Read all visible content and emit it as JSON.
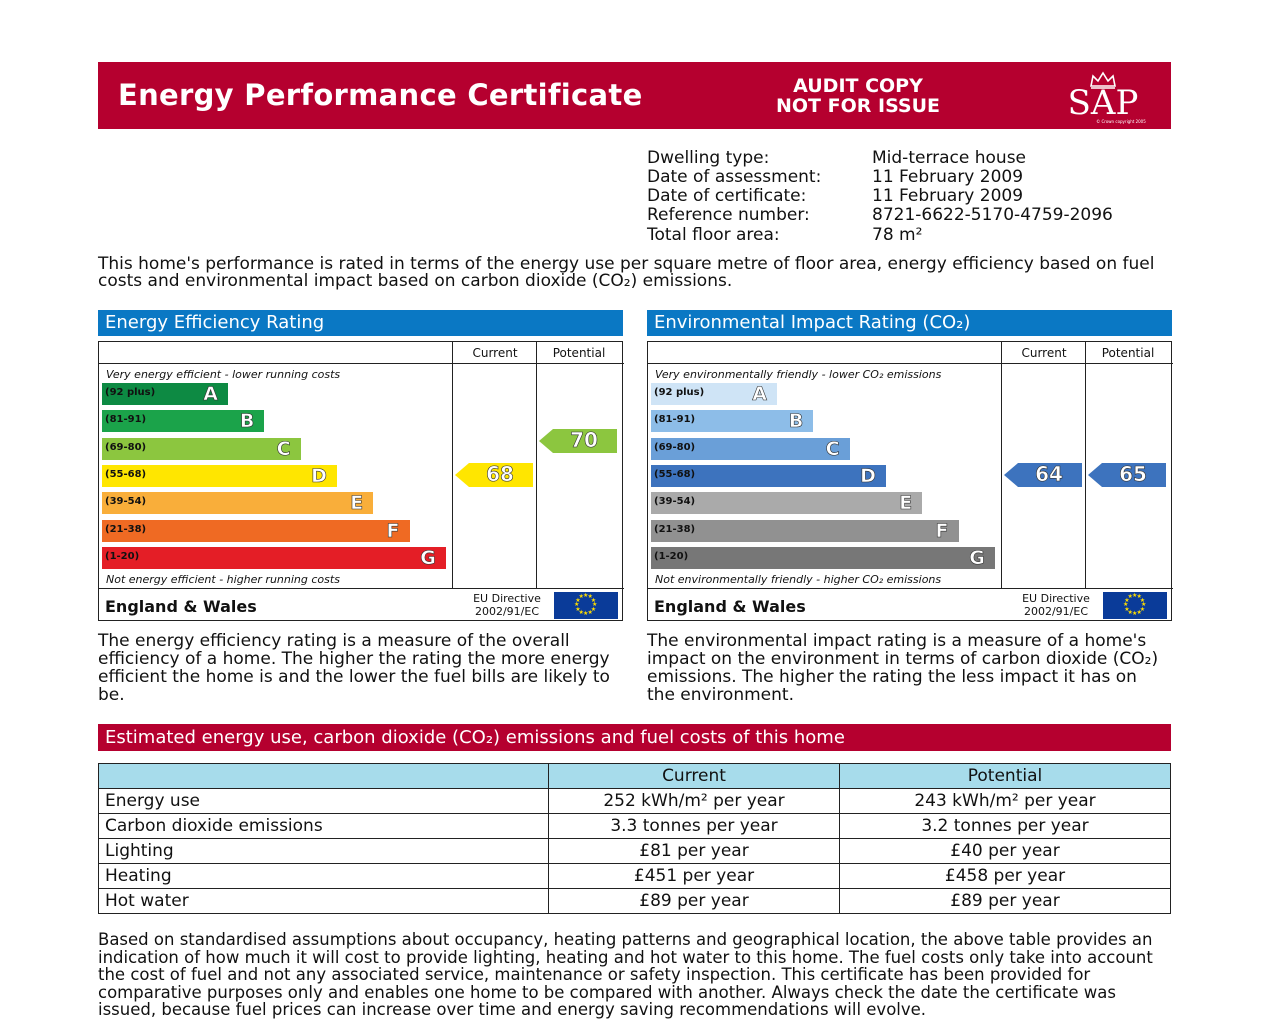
{
  "header": {
    "title": "Energy Performance Certificate",
    "audit_line1": "AUDIT COPY",
    "audit_line2": "NOT FOR ISSUE",
    "logo_text": "SAP",
    "logo_small": "© Crown copyright 2005"
  },
  "details": [
    {
      "label": "Dwelling type:",
      "value": "Mid-terrace house"
    },
    {
      "label": "Date of assessment:",
      "value": "11 February 2009"
    },
    {
      "label": "Date of certificate:",
      "value": "11 February 2009"
    },
    {
      "label": "Reference number:",
      "value": "8721-6622-5170-4759-2096"
    },
    {
      "label": "Total floor area:",
      "value": "78 m²"
    }
  ],
  "intro": "This home's performance is rated in terms of the energy use per square metre of floor area, energy efficiency based on fuel costs and environmental impact based on carbon dioxide (CO₂) emissions.",
  "efficiency": {
    "heading": "Energy Efficiency Rating",
    "col_current": "Current",
    "col_potential": "Potential",
    "top_note": "Very energy efficient - lower running costs",
    "bottom_note": "Not energy efficient - higher running costs",
    "bands": [
      {
        "range": "(92 plus)",
        "letter": "A",
        "color": "#0d8a43"
      },
      {
        "range": "(81-91)",
        "letter": "B",
        "color": "#1ba34a"
      },
      {
        "range": "(69-80)",
        "letter": "C",
        "color": "#8cc63f"
      },
      {
        "range": "(55-68)",
        "letter": "D",
        "color": "#ffe600"
      },
      {
        "range": "(39-54)",
        "letter": "E",
        "color": "#f9ae3a"
      },
      {
        "range": "(21-38)",
        "letter": "F",
        "color": "#ef6a23"
      },
      {
        "range": "(1-20)",
        "letter": "G",
        "color": "#e41e26"
      }
    ],
    "current": "68",
    "current_color": "#ffe600",
    "potential": "70",
    "potential_color": "#8cc63f",
    "region": "England & Wales",
    "eu_line1": "EU Directive",
    "eu_line2": "2002/91/EC"
  },
  "environment": {
    "heading": "Environmental Impact Rating (CO₂)",
    "col_current": "Current",
    "col_potential": "Potential",
    "top_note": "Very environmentally friendly - lower CO₂ emissions",
    "bottom_note": "Not environmentally friendly - higher CO₂ emissions",
    "bands": [
      {
        "range": "(92 plus)",
        "letter": "A",
        "color": "#cfe4f6"
      },
      {
        "range": "(81-91)",
        "letter": "B",
        "color": "#8dbde8"
      },
      {
        "range": "(69-80)",
        "letter": "C",
        "color": "#6a9fd8"
      },
      {
        "range": "(55-68)",
        "letter": "D",
        "color": "#3d73be"
      },
      {
        "range": "(39-54)",
        "letter": "E",
        "color": "#aaaaaa"
      },
      {
        "range": "(21-38)",
        "letter": "F",
        "color": "#919191"
      },
      {
        "range": "(1-20)",
        "letter": "G",
        "color": "#777777"
      }
    ],
    "current": "64",
    "current_color": "#3d73be",
    "potential": "65",
    "potential_color": "#3d73be",
    "region": "England & Wales",
    "eu_line1": "EU Directive",
    "eu_line2": "2002/91/EC"
  },
  "desc_left": "The energy efficiency rating is a measure of the overall efficiency of a home. The higher the rating the more energy efficient the home is and the lower the fuel bills are likely to be.",
  "desc_right": "The environmental impact rating is a measure of a home's impact on the environment in terms of carbon dioxide (CO₂) emissions. The higher the rating the less impact it has on the environment.",
  "estimate": {
    "heading": "Estimated energy use, carbon dioxide (CO₂) emissions and fuel costs of this home",
    "col_current": "Current",
    "col_potential": "Potential",
    "rows": [
      {
        "label": "Energy use",
        "current": "252 kWh/m² per year",
        "potential": "243 kWh/m² per year"
      },
      {
        "label": "Carbon dioxide emissions",
        "current": "3.3 tonnes per year",
        "potential": "3.2 tonnes per year"
      },
      {
        "label": "Lighting",
        "current": "£81 per year",
        "potential": "£40 per year"
      },
      {
        "label": "Heating",
        "current": "£451 per year",
        "potential": "£458 per year"
      },
      {
        "label": "Hot water",
        "current": "£89 per year",
        "potential": "£89 per year"
      }
    ]
  },
  "footer": "Based on standardised assumptions about occupancy, heating patterns and geographical location, the above table provides an indication of how much it will cost to provide lighting, heating and hot water to this home. The fuel costs only take into account the cost of fuel and not any associated service, maintenance or safety inspection. This certificate has been provided for comparative purposes only and enables one home to be compared with another. Always check the date the certificate was issued, because fuel prices can increase over time and energy saving recommendations will evolve."
}
